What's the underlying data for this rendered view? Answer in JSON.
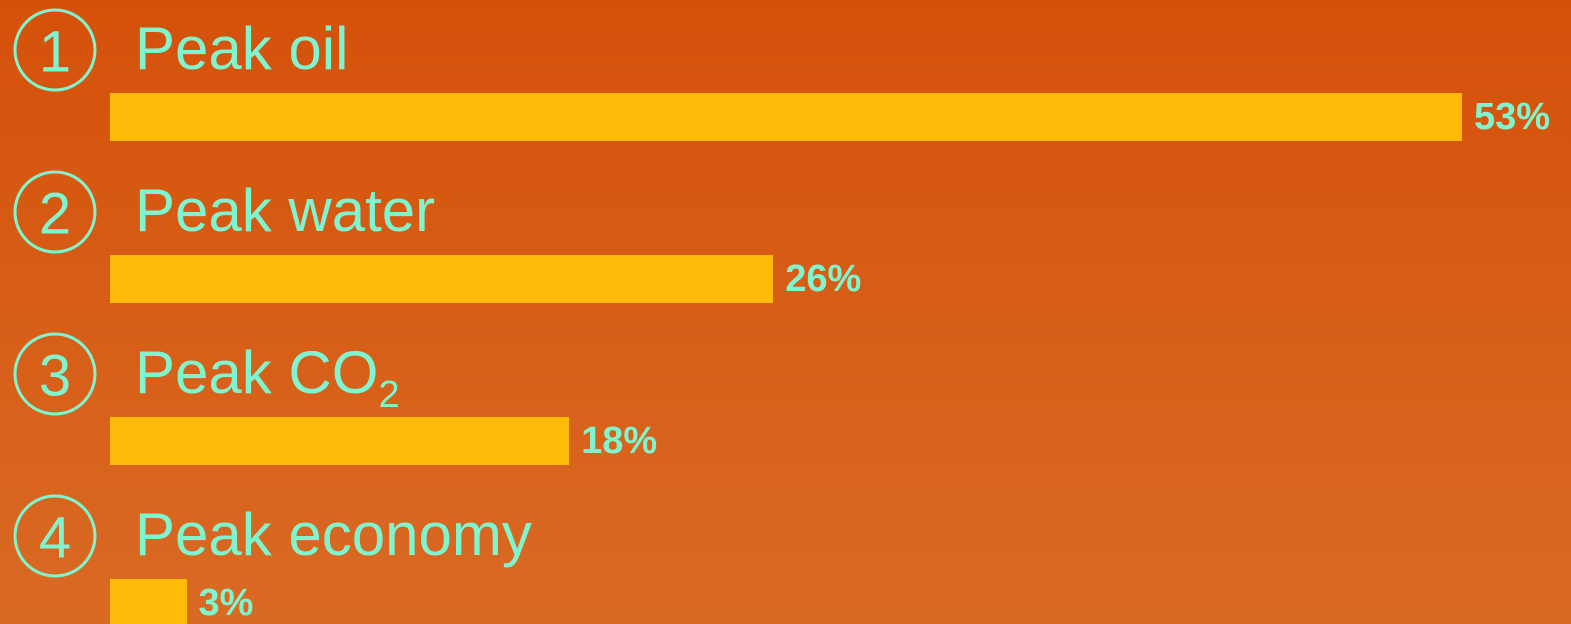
{
  "colors": {
    "background_top": "#d5510a",
    "background_bottom": "#d96a24",
    "bar": "#ffbb08",
    "text": "#7ff5cf"
  },
  "chart_data": {
    "type": "bar",
    "orientation": "horizontal",
    "categories": [
      "Peak oil",
      "Peak water",
      "Peak CO2",
      "Peak economy"
    ],
    "numbers": [
      "1",
      "2",
      "3",
      "4"
    ],
    "values": [
      53,
      26,
      18,
      3
    ],
    "value_labels": [
      "53%",
      "26%",
      "18%",
      "3%"
    ],
    "label_parts": [
      {
        "main": "Peak oil",
        "sub": ""
      },
      {
        "main": "Peak water",
        "sub": ""
      },
      {
        "main": "Peak CO",
        "sub": "2"
      },
      {
        "main": "Peak economy",
        "sub": ""
      }
    ],
    "unit": "%",
    "xlim": [
      0,
      53
    ],
    "grid": false,
    "legend": "none"
  }
}
